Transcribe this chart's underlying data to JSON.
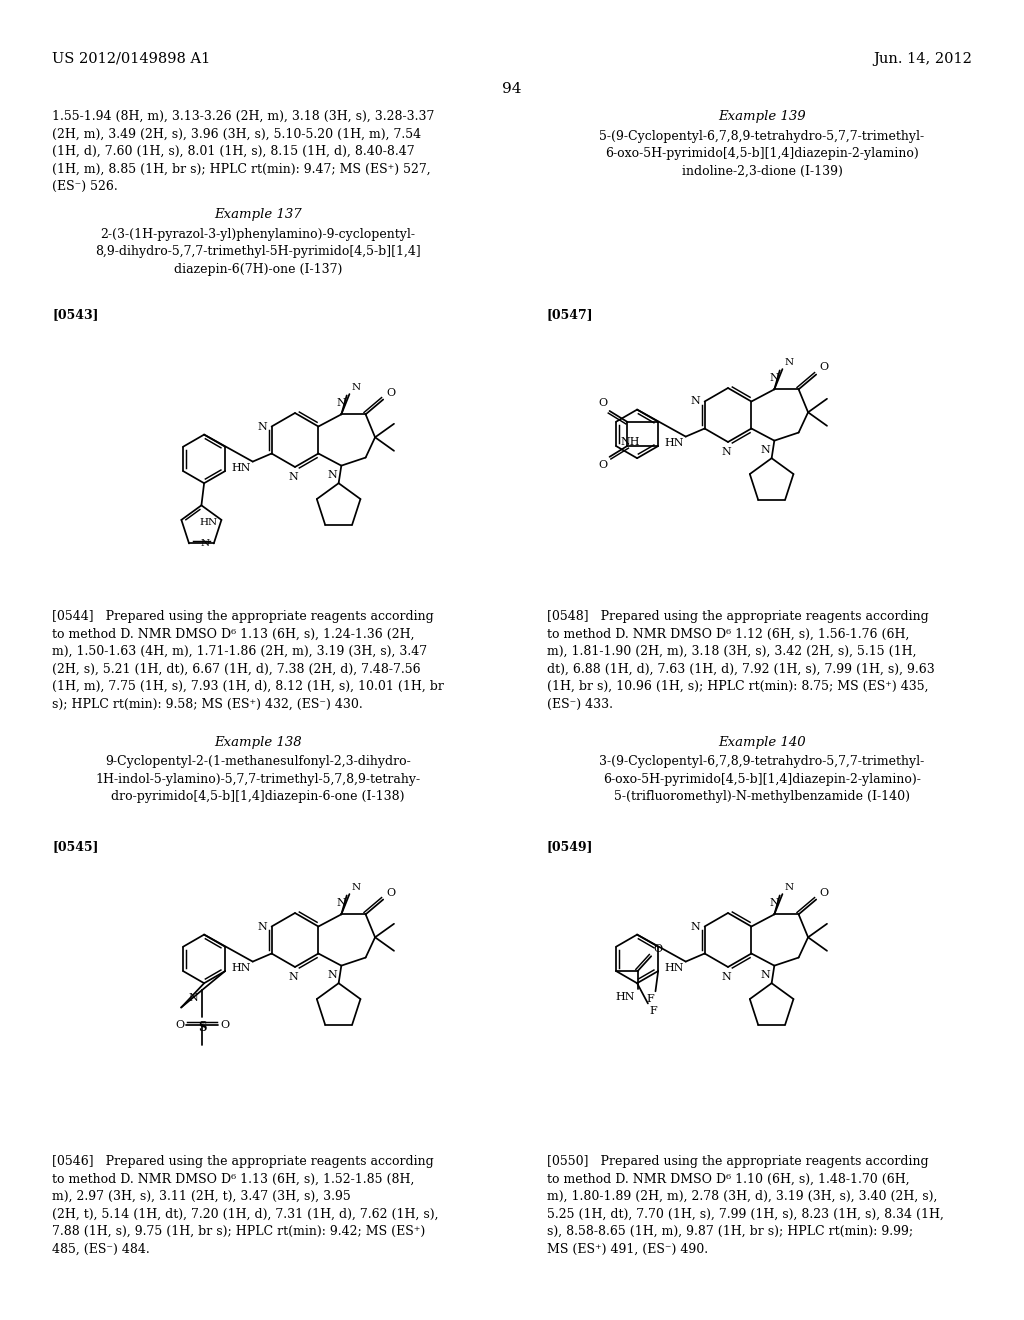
{
  "background_color": "#ffffff",
  "page_number": "94",
  "header_left": "US 2012/0149898 A1",
  "header_right": "Jun. 14, 2012",
  "top_text_left": "1.55-1.94 (8H, m), 3.13-3.26 (2H, m), 3.18 (3H, s), 3.28-3.37\n(2H, m), 3.49 (2H, s), 3.96 (3H, s), 5.10-5.20 (1H, m), 7.54\n(1H, d), 7.60 (1H, s), 8.01 (1H, s), 8.15 (1H, d), 8.40-8.47\n(1H, m), 8.85 (1H, br s); HPLC rt(min): 9.47; MS (ES⁺) 527,\n(ES⁻) 526.",
  "example137_title": "Example 137",
  "example137_name": "2-(3-(1H-pyrazol-3-yl)phenylamino)-9-cyclopentyl-\n8,9-dihydro-5,7,7-trimethyl-5H-pyrimido[4,5-b][1,4]\ndiazepin-6(7H)-one (I-137)",
  "param0543": "[0543]",
  "param0544": "[0544]   Prepared using the appropriate reagents according\nto method D. NMR DMSO D⁶ 1.13 (6H, s), 1.24-1.36 (2H,\nm), 1.50-1.63 (4H, m), 1.71-1.86 (2H, m), 3.19 (3H, s), 3.47\n(2H, s), 5.21 (1H, dt), 6.67 (1H, d), 7.38 (2H, d), 7.48-7.56\n(1H, m), 7.75 (1H, s), 7.93 (1H, d), 8.12 (1H, s), 10.01 (1H, br\ns); HPLC rt(min): 9.58; MS (ES⁺) 432, (ES⁻) 430.",
  "example138_title": "Example 138",
  "example138_name": "9-Cyclopentyl-2-(1-methanesulfonyl-2,3-dihydro-\n1H-indol-5-ylamino)-5,7,7-trimethyl-5,7,8,9-tetrahy-\ndro-pyrimido[4,5-b][1,4]diazepin-6-one (I-138)",
  "param0545": "[0545]",
  "param0546": "[0546]   Prepared using the appropriate reagents according\nto method D. NMR DMSO D⁶ 1.13 (6H, s), 1.52-1.85 (8H,\nm), 2.97 (3H, s), 3.11 (2H, t), 3.47 (3H, s), 3.95\n(2H, t), 5.14 (1H, dt), 7.20 (1H, d), 7.31 (1H, d), 7.62 (1H, s),\n7.88 (1H, s), 9.75 (1H, br s); HPLC rt(min): 9.42; MS (ES⁺)\n485, (ES⁻) 484.",
  "example139_title": "Example 139",
  "example139_name": "5-(9-Cyclopentyl-6,7,8,9-tetrahydro-5,7,7-trimethyl-\n6-oxo-5H-pyrimido[4,5-b][1,4]diazepin-2-ylamino)\nindoline-2,3-dione (I-139)",
  "param0547": "[0547]",
  "param0548": "[0548]   Prepared using the appropriate reagents according\nto method D. NMR DMSO D⁶ 1.12 (6H, s), 1.56-1.76 (6H,\nm), 1.81-1.90 (2H, m), 3.18 (3H, s), 3.42 (2H, s), 5.15 (1H,\ndt), 6.88 (1H, d), 7.63 (1H, d), 7.92 (1H, s), 7.99 (1H, s), 9.63\n(1H, br s), 10.96 (1H, s); HPLC rt(min): 8.75; MS (ES⁺) 435,\n(ES⁻) 433.",
  "example140_title": "Example 140",
  "example140_name": "3-(9-Cyclopentyl-6,7,8,9-tetrahydro-5,7,7-trimethyl-\n6-oxo-5H-pyrimido[4,5-b][1,4]diazepin-2-ylamino)-\n5-(trifluoromethyl)-N-methylbenzamide (I-140)",
  "param0549": "[0549]",
  "param0550": "[0550]   Prepared using the appropriate reagents according\nto method D. NMR DMSO D⁶ 1.10 (6H, s), 1.48-1.70 (6H,\nm), 1.80-1.89 (2H, m), 2.78 (3H, d), 3.19 (3H, s), 3.40 (2H, s),\n5.25 (1H, dt), 7.70 (1H, s), 7.99 (1H, s), 8.23 (1H, s), 8.34 (1H,\ns), 8.58-8.65 (1H, m), 9.87 (1H, br s); HPLC rt(min): 9.99;\nMS (ES⁺) 491, (ES⁻) 490."
}
